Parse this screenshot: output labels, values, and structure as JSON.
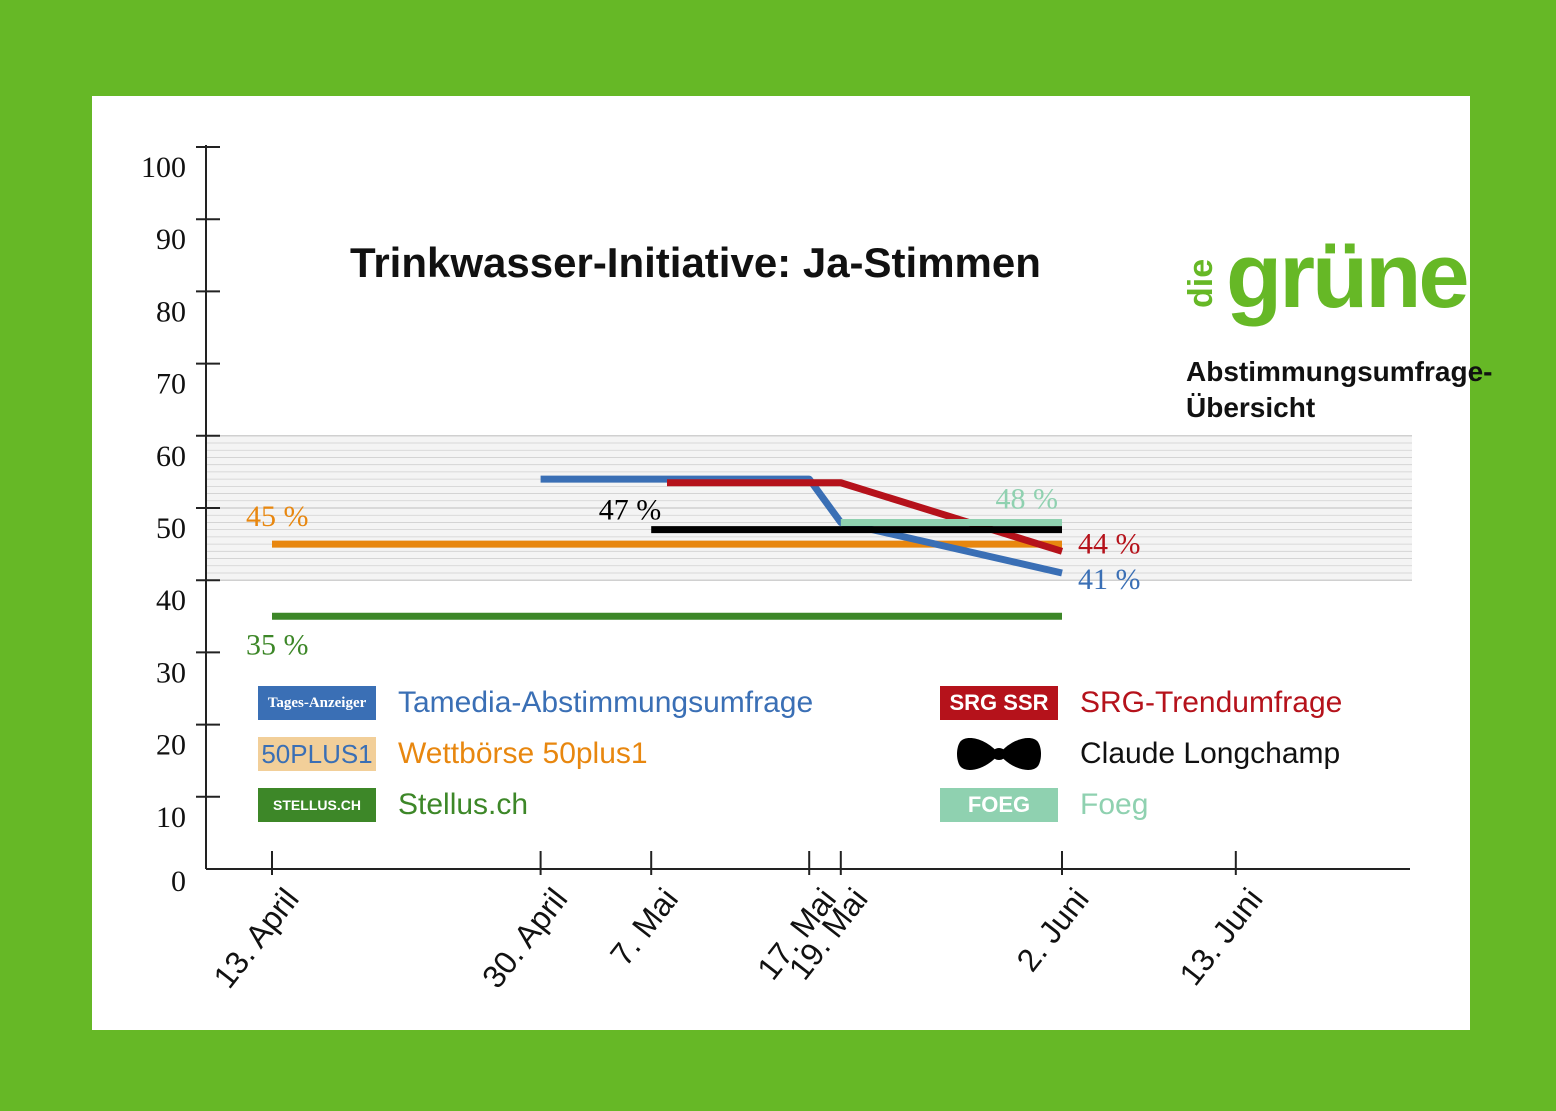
{
  "title": "Trinkwasser-Initiative: Ja-Stimmen",
  "logo": {
    "die": "die",
    "grune": "grüne"
  },
  "subtitle_line1": "Abstimmungsumfrage-",
  "subtitle_line2": "Übersicht",
  "colors": {
    "background": "#66b826",
    "tamedia": "#3a6fb5",
    "wettboerse": "#e8870f",
    "stellus": "#3d8728",
    "srg": "#b5121b",
    "longchamp": "#000000",
    "foeg": "#8fd1b0"
  },
  "legend": [
    {
      "logo_text": "Tages-Anzeiger",
      "logo_bg": "#3a6fb5",
      "logo_fg": "#ffffff",
      "label": "Tamedia-Abstimmungsumfrage",
      "color": "#3a6fb5",
      "icon": "tages-anzeiger-logo-icon"
    },
    {
      "logo_text": "50PLUS1",
      "logo_bg": "#f2cf99",
      "logo_fg": "#3a6fb5",
      "label": "Wettbörse 50plus1",
      "color": "#e8870f",
      "icon": "50plus1-logo-icon"
    },
    {
      "logo_text": "STELLUS.CH",
      "logo_bg": "#3d8728",
      "logo_fg": "#ffffff",
      "label": "Stellus.ch",
      "color": "#3d8728",
      "icon": "stellus-logo-icon"
    },
    {
      "logo_text": "SRG SSR",
      "logo_bg": "#b5121b",
      "logo_fg": "#ffffff",
      "label": "SRG-Trendumfrage",
      "color": "#b5121b",
      "icon": "srg-ssr-logo-icon"
    },
    {
      "logo_text": "",
      "logo_bg": "",
      "logo_fg": "#000000",
      "label": "Claude Longchamp",
      "color": "#111111",
      "icon": "bow-tie-icon"
    },
    {
      "logo_text": "FOEG",
      "logo_bg": "#8fd1b0",
      "logo_fg": "#ffffff",
      "label": "Foeg",
      "color": "#8fd1b0",
      "icon": "foeg-logo-icon"
    }
  ],
  "chart_data": {
    "type": "line",
    "title": "Trinkwasser-Initiative: Ja-Stimmen",
    "x_categories": [
      "13. April",
      "30. April",
      "7. Mai",
      "17. Mai",
      "19. Mai",
      "2. Juni",
      "13. Juni"
    ],
    "x_positions_days": [
      0,
      17,
      24,
      34,
      36,
      50,
      61
    ],
    "y_ticks": [
      "0",
      "10",
      "20",
      "30",
      "40",
      "50",
      "60",
      "70",
      "80",
      "90",
      "100"
    ],
    "ylim": [
      0,
      100
    ],
    "shaded_band": [
      40,
      60
    ],
    "series": [
      {
        "name": "Wettbörse 50plus1",
        "color": "#e8870f",
        "points": [
          [
            0,
            45
          ],
          [
            50,
            45
          ]
        ],
        "end_label": "",
        "start_label": "45 %"
      },
      {
        "name": "Stellus.ch",
        "color": "#3d8728",
        "points": [
          [
            0,
            35
          ],
          [
            50,
            35
          ]
        ],
        "end_label": "",
        "start_label": "35 %"
      },
      {
        "name": "Tamedia-Abstimmungsumfrage",
        "color": "#3a6fb5",
        "points": [
          [
            17,
            54
          ],
          [
            34,
            54
          ],
          [
            36,
            48
          ],
          [
            50,
            41
          ]
        ],
        "end_label": "41 %",
        "start_label": ""
      },
      {
        "name": "SRG-Trendumfrage",
        "color": "#b5121b",
        "points": [
          [
            25,
            53.5
          ],
          [
            36,
            53.5
          ],
          [
            50,
            44
          ]
        ],
        "end_label": "44 %",
        "start_label": ""
      },
      {
        "name": "Claude Longchamp",
        "color": "#000000",
        "points": [
          [
            24,
            47
          ],
          [
            50,
            47
          ]
        ],
        "end_label": "",
        "start_label": "47 %"
      },
      {
        "name": "Foeg",
        "color": "#8fd1b0",
        "points": [
          [
            36,
            48
          ],
          [
            50,
            48
          ]
        ],
        "end_label": "48 %",
        "start_label": ""
      }
    ]
  }
}
